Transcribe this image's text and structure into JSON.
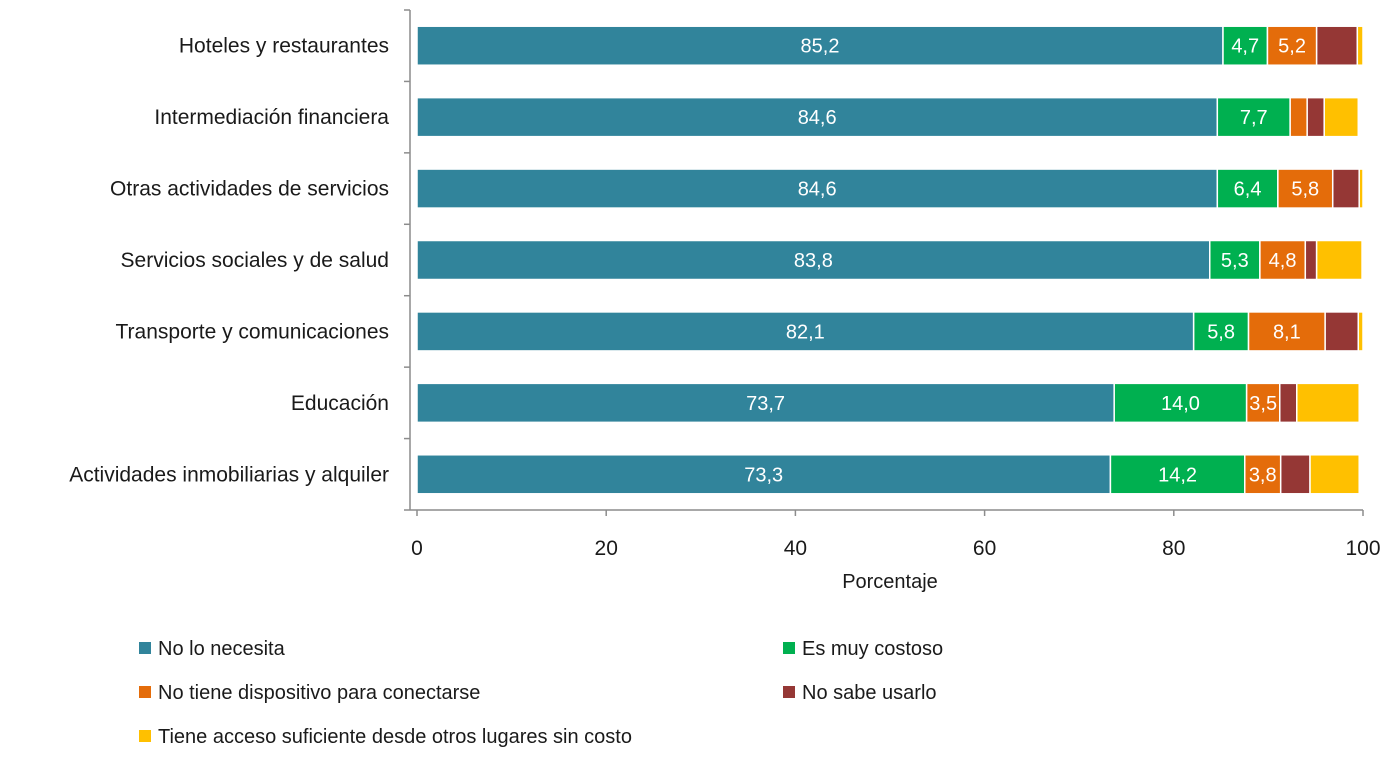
{
  "chart_data": {
    "type": "bar",
    "orientation": "horizontal",
    "stacked": true,
    "categories": [
      "Hoteles y restaurantes",
      "Intermediación financiera",
      "Otras actividades de servicios",
      "Servicios sociales y de salud",
      "Transporte y comunicaciones",
      "Educación",
      "Actividades inmobiliarias y  alquiler"
    ],
    "series": [
      {
        "name": "No lo necesita",
        "color": "#31849B",
        "values": [
          85.2,
          84.6,
          84.6,
          83.8,
          82.1,
          73.7,
          73.3
        ],
        "labels": [
          "85,2",
          "84,6",
          "84,6",
          "83,8",
          "82,1",
          "73,7",
          "73,3"
        ]
      },
      {
        "name": "Es muy costoso",
        "color": "#00B050",
        "values": [
          4.7,
          7.7,
          6.4,
          5.3,
          5.8,
          14.0,
          14.2
        ],
        "labels": [
          "4,7",
          "7,7",
          "6,4",
          "5,3",
          "5,8",
          "14,0",
          "14,2"
        ]
      },
      {
        "name": "No tiene dispositivo para conectarse",
        "color": "#E46C0A",
        "values": [
          5.2,
          1.8,
          5.8,
          4.8,
          8.1,
          3.5,
          3.8
        ],
        "labels": [
          "5,2",
          "",
          "5,8",
          "4,8",
          "8,1",
          "3,5",
          "3,8"
        ]
      },
      {
        "name": "No sabe usarlo",
        "color": "#953735",
        "values": [
          4.3,
          1.8,
          2.8,
          1.2,
          3.5,
          1.8,
          3.1
        ],
        "labels": [
          "",
          "",
          "",
          "",
          "",
          "",
          ""
        ]
      },
      {
        "name": "Tiene acceso suficiente desde otros lugares sin costo",
        "color": "#FFC000",
        "values": [
          0.6,
          3.6,
          0.4,
          4.8,
          0.5,
          6.6,
          5.2
        ],
        "labels": [
          "",
          "",
          "",
          "",
          "",
          "",
          ""
        ]
      }
    ],
    "xlim": [
      0,
      100
    ],
    "xticks": [
      0,
      20,
      40,
      60,
      80,
      100
    ],
    "xlabel": "Porcentaje",
    "ylabel": "",
    "title": "",
    "grid": false,
    "legend_position": "bottom"
  }
}
